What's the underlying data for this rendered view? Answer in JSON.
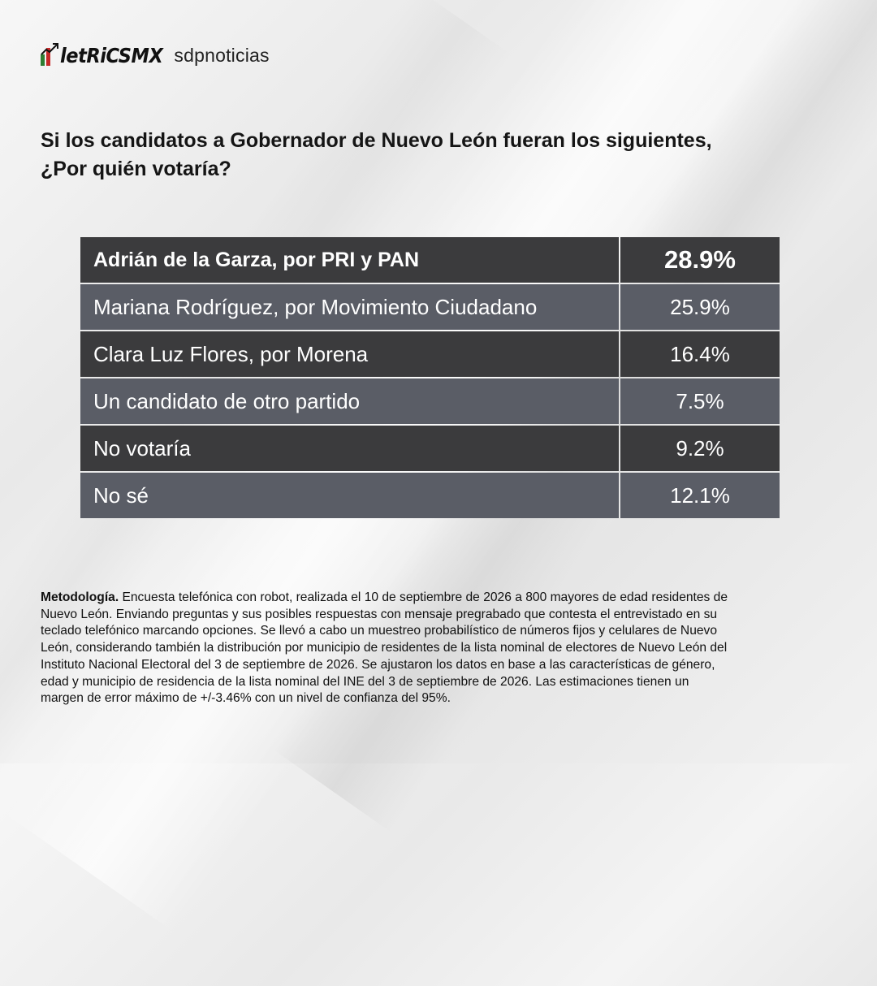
{
  "brand": {
    "logo_text": "letRiCSMX",
    "partner": "sdpnoticias",
    "colors": {
      "green": "#2e7d32",
      "red": "#c62828"
    }
  },
  "question": {
    "line1": "Si los candidatos a Gobernador de Nuevo León fueran los siguientes,",
    "line2": "¿Por quién votaría?"
  },
  "chart_data": {
    "type": "table",
    "title": "Si los candidatos a Gobernador de Nuevo León fueran los siguientes, ¿Por quién votaría?",
    "columns": [
      "",
      ""
    ],
    "rows": [
      {
        "label": "Adrián de la Garza, por PRI y PAN",
        "value": 28.9,
        "display": "28.9%"
      },
      {
        "label": "Mariana Rodríguez, por Movimiento Ciudadano",
        "value": 25.9,
        "display": "25.9%"
      },
      {
        "label": "Clara Luz Flores, por Morena",
        "value": 16.4,
        "display": "16.4%"
      },
      {
        "label": "Un candidato de otro partido",
        "value": 7.5,
        "display": "7.5%"
      },
      {
        "label": "No votaría",
        "value": 9.2,
        "display": "9.2%"
      },
      {
        "label": "No sé",
        "value": 12.1,
        "display": "12.1%"
      }
    ],
    "colors": {
      "row_dark": "#3b3b3d",
      "row_light": "#5a5d66",
      "text": "#ffffff"
    }
  },
  "methodology": {
    "heading": "Metodología.",
    "lines": [
      " Encuesta telefónica con robot, realizada el 10 de septiembre de 2026 a 800 mayores de edad residentes de",
      "Nuevo León. Enviando preguntas y sus posibles respuestas con mensaje pregrabado que contesta el entrevistado en su",
      "teclado telefónico marcando opciones. Se llevó a cabo un muestreo probabilístico de números fijos y celulares de Nuevo",
      "León, considerando también la distribución por municipio de residentes de la lista nominal de electores de Nuevo León del",
      "Instituto Nacional Electoral del 3 de septiembre de 2026. Se ajustaron los datos en base a las características de género,",
      "edad y municipio de residencia de la lista nominal del INE del 3 de septiembre de 2026. Las estimaciones tienen un",
      "margen de error máximo de +/-3.46% con un nivel de confianza del 95%."
    ]
  }
}
